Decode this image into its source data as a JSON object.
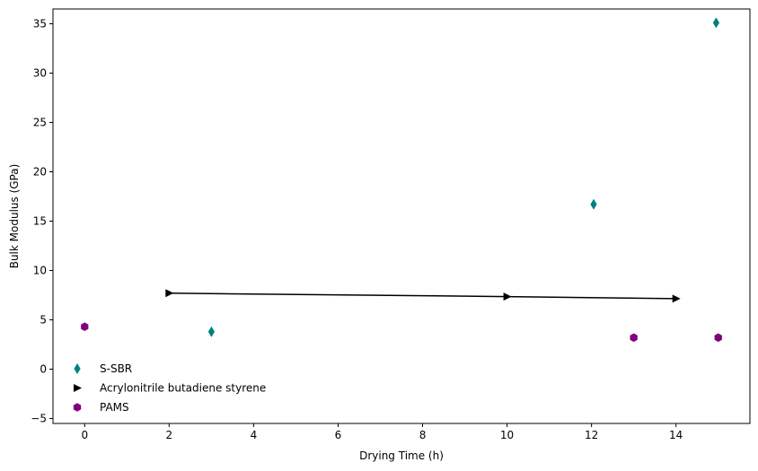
{
  "chart_data": {
    "type": "scatter",
    "title": "",
    "xlabel": "Drying Time (h)",
    "ylabel": "Bulk Modulus (GPa)",
    "xlim": [
      -0.75,
      15.75
    ],
    "ylim": [
      -5.5,
      36.5
    ],
    "xticks": [
      0,
      2,
      4,
      6,
      8,
      10,
      12,
      14
    ],
    "yticks": [
      -5,
      0,
      5,
      10,
      15,
      20,
      25,
      30,
      35
    ],
    "grid": false,
    "legend_position": "lower-left",
    "series": [
      {
        "name": "S-SBR",
        "marker": "thin-diamond",
        "line": false,
        "color": "#008080",
        "points": [
          [
            3,
            3.8
          ],
          [
            12.05,
            16.7
          ],
          [
            14.95,
            35.1
          ]
        ]
      },
      {
        "name": "Acrylonitrile butadiene styrene",
        "marker": "triangle-right",
        "line": true,
        "color": "#000000",
        "points": [
          [
            2,
            7.7
          ],
          [
            10,
            7.35
          ],
          [
            14,
            7.15
          ]
        ]
      },
      {
        "name": "PAMS",
        "marker": "hexagon",
        "line": false,
        "color": "#800080",
        "points": [
          [
            0,
            4.3
          ],
          [
            13,
            3.2
          ],
          [
            15,
            3.2
          ]
        ]
      }
    ]
  }
}
